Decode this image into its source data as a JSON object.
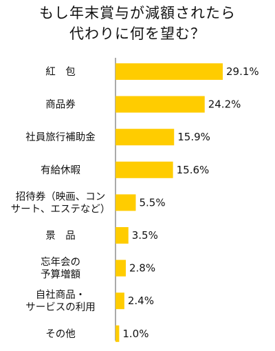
{
  "chart_data": {
    "type": "bar",
    "orientation": "horizontal",
    "title_lines": [
      "もし年末賞与が減額されたら",
      "代わりに何を望む？"
    ],
    "categories": [
      [
        "紅　包"
      ],
      [
        "商品券"
      ],
      [
        "社員旅行補助金"
      ],
      [
        "有給休暇"
      ],
      [
        "招待券（映画、コン",
        "サート、エステなど）"
      ],
      [
        "景　品"
      ],
      [
        "忘年会の",
        "予算増額"
      ],
      [
        "自社商品・",
        "サービスの利用"
      ],
      [
        "その他"
      ]
    ],
    "values": [
      29.1,
      24.2,
      15.9,
      15.6,
      5.5,
      3.5,
      2.8,
      2.4,
      1.0
    ],
    "value_labels": [
      "29.1%",
      "24.2%",
      "15.9%",
      "15.6%",
      "5.5%",
      "3.5%",
      "2.8%",
      "2.4%",
      "1.0%"
    ],
    "xlim": [
      0,
      29.1
    ],
    "bar_color": "#FFCC00",
    "axis_color": "#555555",
    "grid": false,
    "legend": "none"
  }
}
